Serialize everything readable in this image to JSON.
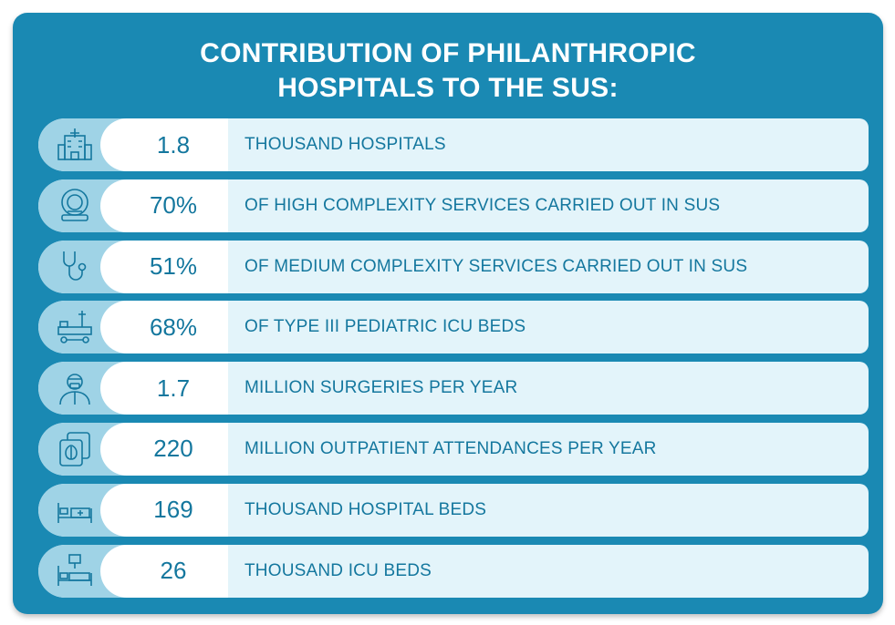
{
  "title": {
    "line1": "CONTRIBUTION OF PHILANTHROPIC",
    "line2": "HOSPITALS TO THE SUS:"
  },
  "colors": {
    "background": "#1a89b3",
    "row": "#e3f4fa",
    "icon_bg": "#9fd3e6",
    "text": "#14779e"
  },
  "rows": [
    {
      "icon": "hospital-icon",
      "value": "1.8",
      "label": "THOUSAND HOSPITALS"
    },
    {
      "icon": "mri-scanner-icon",
      "value": "70%",
      "label": "OF HIGH COMPLEXITY SERVICES CARRIED OUT IN SUS"
    },
    {
      "icon": "stethoscope-icon",
      "value": "51%",
      "label": "OF MEDIUM COMPLEXITY SERVICES CARRIED OUT IN SUS"
    },
    {
      "icon": "icu-bed-icon",
      "value": "68%",
      "label": "OF TYPE III PEDIATRIC ICU BEDS"
    },
    {
      "icon": "surgeon-icon",
      "value": "1.7",
      "label": "MILLION SURGERIES PER YEAR"
    },
    {
      "icon": "brain-scan-icon",
      "value": "220",
      "label": "MILLION OUTPATIENT ATTENDANCES PER YEAR"
    },
    {
      "icon": "hospital-bed-icon",
      "value": "169",
      "label": "THOUSAND HOSPITAL BEDS"
    },
    {
      "icon": "icu-monitor-bed-icon",
      "value": "26",
      "label": "THOUSAND ICU BEDS"
    }
  ]
}
